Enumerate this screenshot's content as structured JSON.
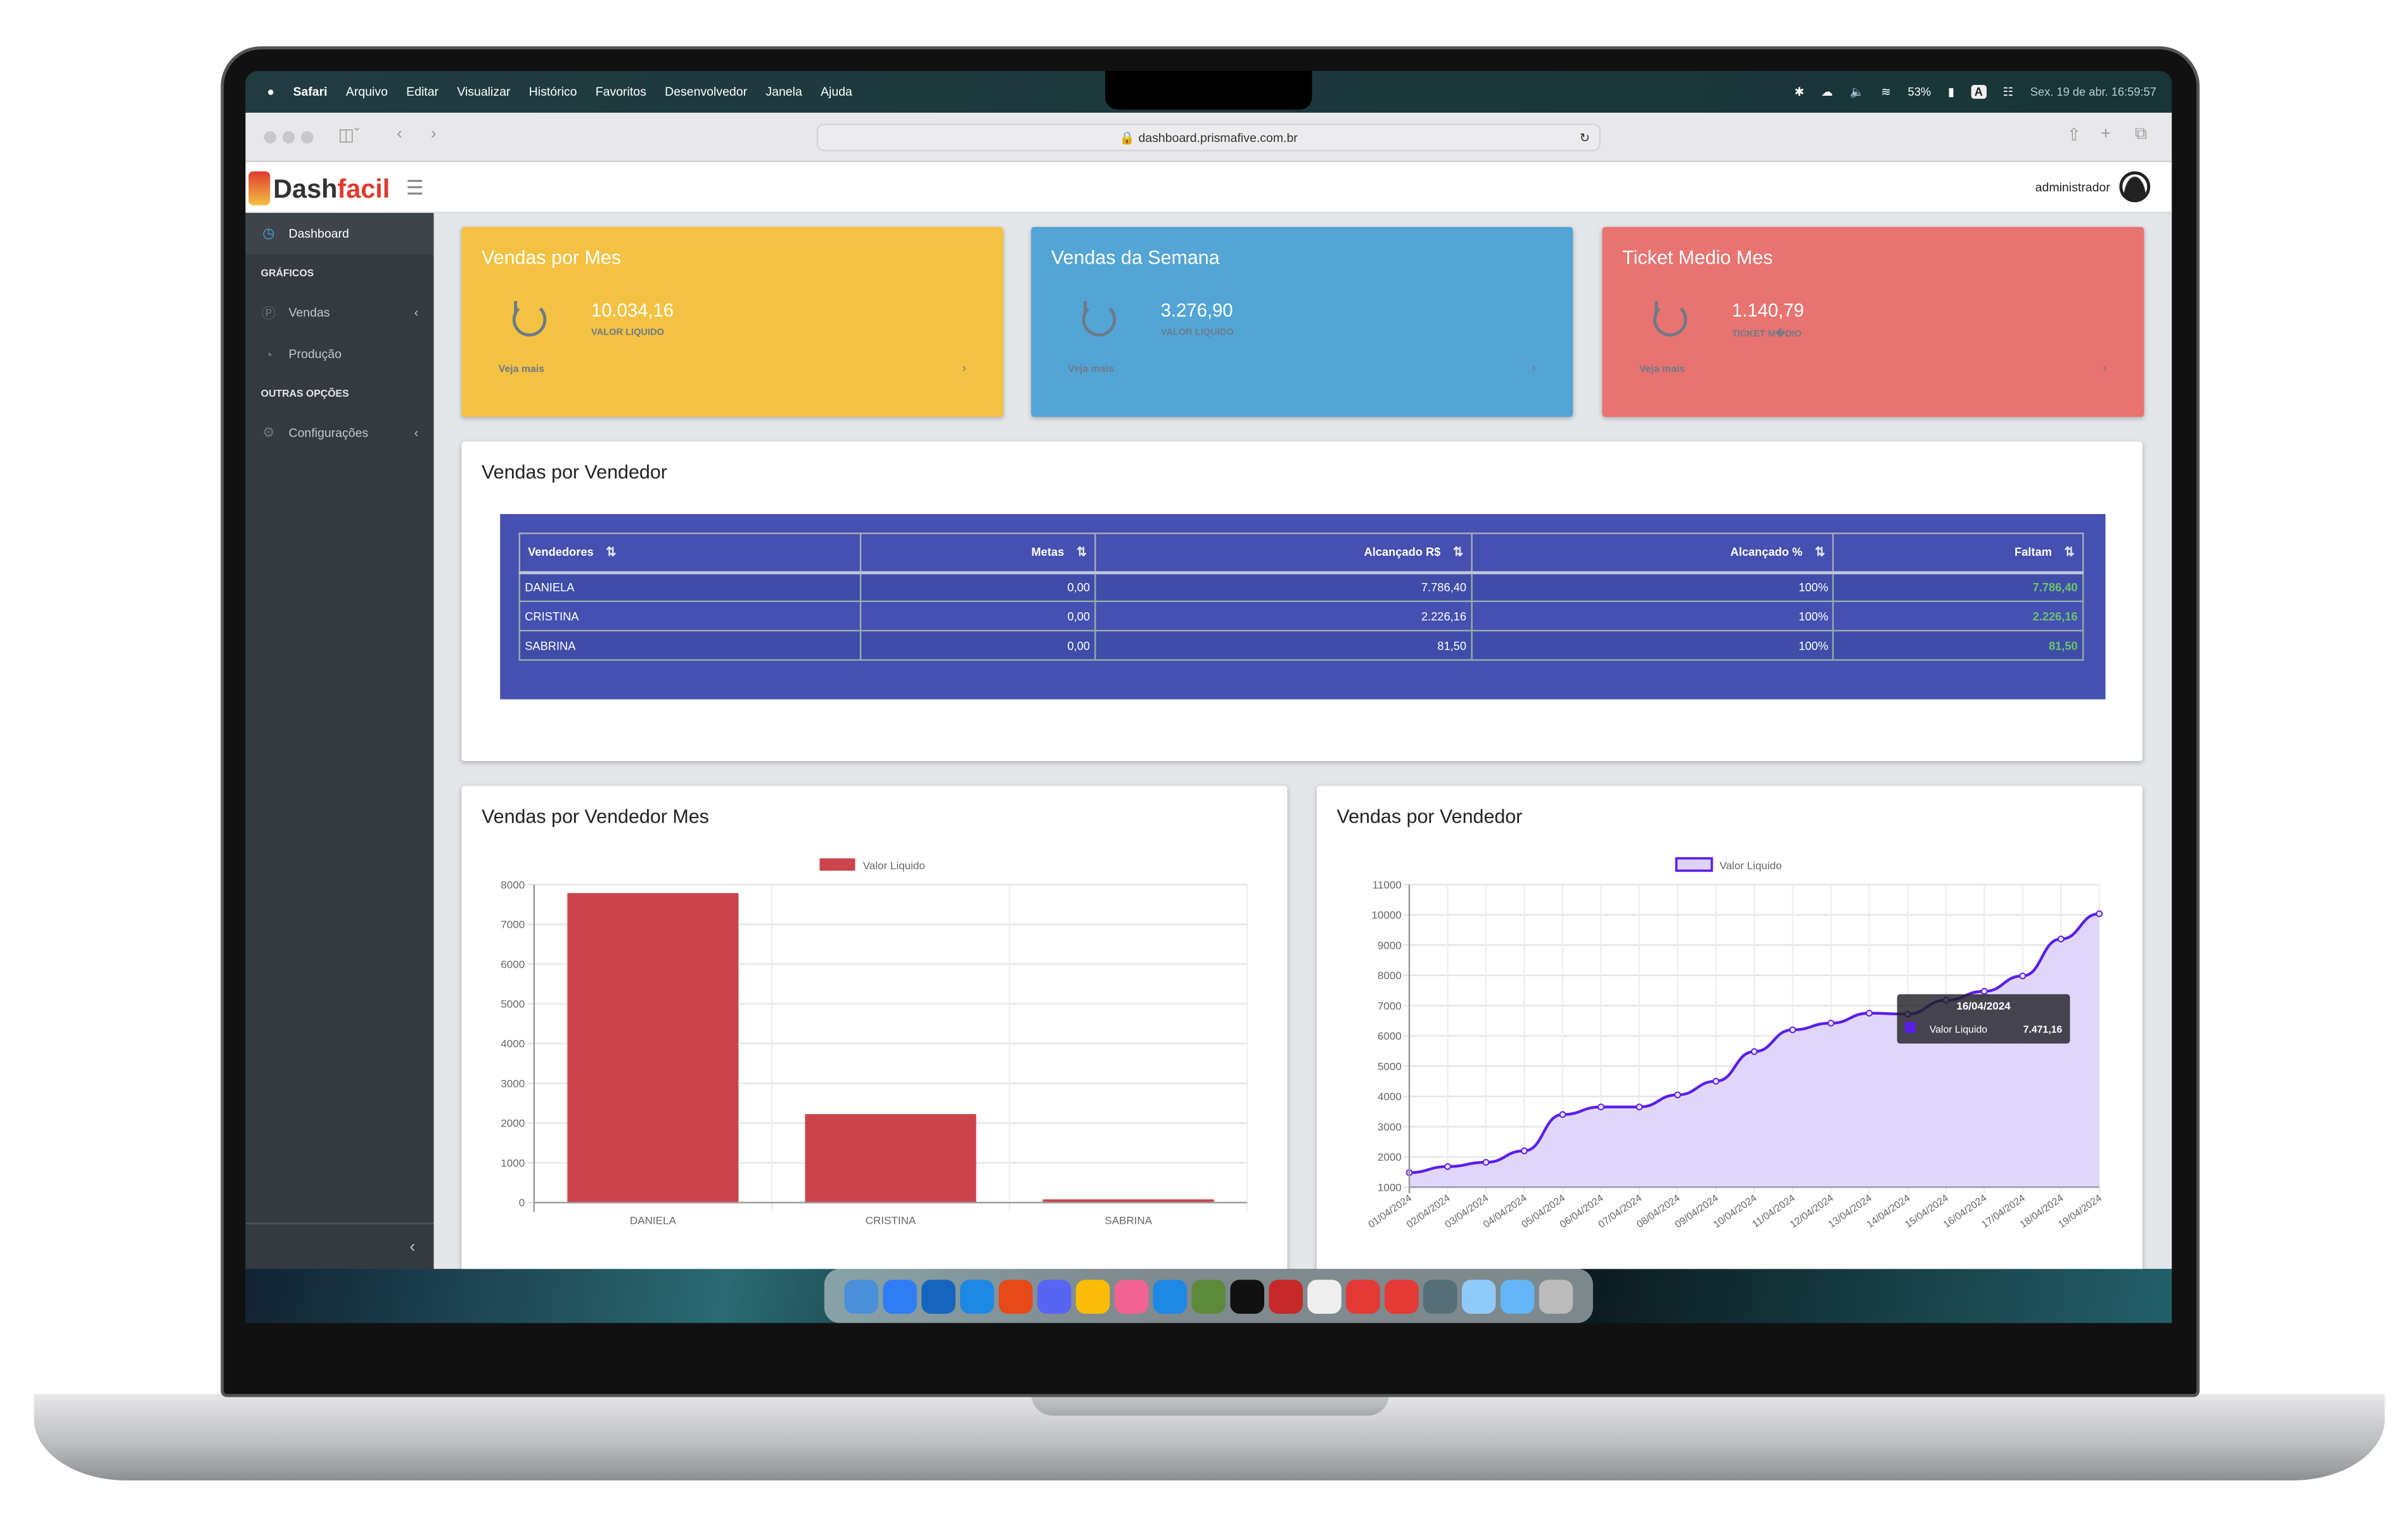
{
  "macos": {
    "menu": [
      "Safari",
      "Arquivo",
      "Editar",
      "Visualizar",
      "Histórico",
      "Favoritos",
      "Desenvolvedor",
      "Janela",
      "Ajuda"
    ],
    "battery": "53%",
    "input_badge": "A",
    "datetime": "Sex. 19 de abr.  16:59:57"
  },
  "browser": {
    "url": "dashboard.prismafive.com.br"
  },
  "app": {
    "logo_part1": "Dash",
    "logo_part2": "facil",
    "user": "administrador"
  },
  "sidebar": {
    "items": [
      {
        "label": "Dashboard",
        "icon": "gauge-icon",
        "active": true
      },
      {
        "section": "GRÁFICOS"
      },
      {
        "label": "Vendas",
        "icon": "dollar-icon"
      },
      {
        "label": "Produção",
        "icon": "pie-icon"
      },
      {
        "section": "OUTRAS OPÇÕES"
      },
      {
        "label": "Configurações",
        "icon": "gear-icon"
      }
    ],
    "collapse": "‹"
  },
  "cards": [
    {
      "title": "Vendas por Mes",
      "value": "10.034,16",
      "subtitle": "VALOR LIQUIDO",
      "more": "Veja mais",
      "color": "#f3c242"
    },
    {
      "title": "Vendas da Semana",
      "value": "3.276,90",
      "subtitle": "VALOR LIQUIDO",
      "more": "Veja mais",
      "color": "#52a5d5"
    },
    {
      "title": "Ticket Medio Mes",
      "value": "1.140,79",
      "subtitle": "TICKET M�DIO",
      "more": "Veja mais",
      "color": "#e87370"
    }
  ],
  "table": {
    "title": "Vendas por Vendedor",
    "columns": [
      "Vendedores",
      "Metas",
      "Alcançado R$",
      "Alcançado %",
      "Faltam"
    ],
    "rows": [
      [
        "DANIELA",
        "0,00",
        "7.786,40",
        "100%",
        "7.786,40"
      ],
      [
        "CRISTINA",
        "0,00",
        "2.226,16",
        "100%",
        "2.226,16"
      ],
      [
        "SABRINA",
        "0,00",
        "81,50",
        "100%",
        "81,50"
      ]
    ]
  },
  "chart_data": [
    {
      "type": "bar",
      "title": "Vendas por Vendedor Mes",
      "categories": [
        "DANIELA",
        "CRISTINA",
        "SABRINA"
      ],
      "series": [
        {
          "name": "Valor Liquido",
          "values": [
            7786.4,
            2226.16,
            81.5
          ],
          "color": "#cc444b"
        }
      ],
      "ylim": [
        0,
        8000
      ],
      "yticks": [
        0,
        1000,
        2000,
        3000,
        4000,
        5000,
        6000,
        7000,
        8000
      ],
      "grid": true,
      "legend": "top"
    },
    {
      "type": "area",
      "title": "Vendas por Vendedor",
      "categories": [
        "01/04/2024",
        "02/04/2024",
        "03/04/2024",
        "04/04/2024",
        "05/04/2024",
        "06/04/2024",
        "07/04/2024",
        "08/04/2024",
        "09/04/2024",
        "10/04/2024",
        "11/04/2024",
        "12/04/2024",
        "13/04/2024",
        "14/04/2024",
        "15/04/2024",
        "16/04/2024",
        "17/04/2024",
        "18/04/2024",
        "19/04/2024"
      ],
      "series": [
        {
          "name": "Valor Liquido",
          "values": [
            1480,
            1680,
            1820,
            2200,
            3400,
            3650,
            3650,
            4050,
            4500,
            5480,
            6200,
            6420,
            6750,
            6720,
            7180,
            7471.16,
            7980,
            9200,
            10034.16
          ],
          "color": "#5b1ee8",
          "fill": "#ddd2f9"
        }
      ],
      "ylim": [
        1000,
        11000
      ],
      "yticks": [
        1000,
        2000,
        3000,
        4000,
        5000,
        6000,
        7000,
        8000,
        9000,
        10000,
        11000
      ],
      "grid": true,
      "legend": "top",
      "tooltip": {
        "title": "16/04/2024",
        "label": "Valor Liquido",
        "value": "7.471,16"
      }
    }
  ]
}
